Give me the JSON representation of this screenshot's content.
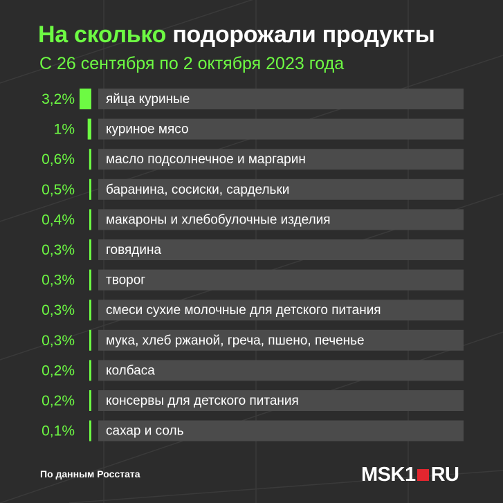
{
  "header": {
    "title_part1": "На сколько",
    "title_part2": "подорожали продукты",
    "subtitle": "С 26 сентября по 2 октября 2023 года"
  },
  "chart_data": {
    "type": "bar",
    "orientation": "horizontal",
    "title": "На сколько подорожали продукты",
    "subtitle": "С 26 сентября по 2 октября 2023 года",
    "unit": "%",
    "categories": [
      "яйца куриные",
      "куриное мясо",
      "масло подсолнечное и маргарин",
      "баранина, сосиски, сардельки",
      "макароны и хлебобулочные изделия",
      "говядина",
      "творог",
      "смеси сухие молочные для детского питания",
      "мука, хлеб ржаной, греча, пшено, печенье",
      "колбаса",
      "консервы для детского питания",
      "сахар и соль"
    ],
    "values": [
      3.2,
      1,
      0.6,
      0.5,
      0.4,
      0.3,
      0.3,
      0.3,
      0.3,
      0.2,
      0.2,
      0.1
    ],
    "value_labels": [
      "3,2%",
      "1%",
      "0,6%",
      "0,5%",
      "0,4%",
      "0,3%",
      "0,3%",
      "0,3%",
      "0,3%",
      "0,2%",
      "0,2%",
      "0,1%"
    ],
    "grid": false,
    "legend": "none"
  },
  "colors": {
    "background": "#2c2c2c",
    "accent": "#6dfa43",
    "row": "#4b4b4b",
    "text": "#ffffff",
    "logo_red": "#e3262f"
  },
  "footer": {
    "source": "По данным Росстата",
    "logo_left": "MSK1",
    "logo_right": "RU"
  }
}
